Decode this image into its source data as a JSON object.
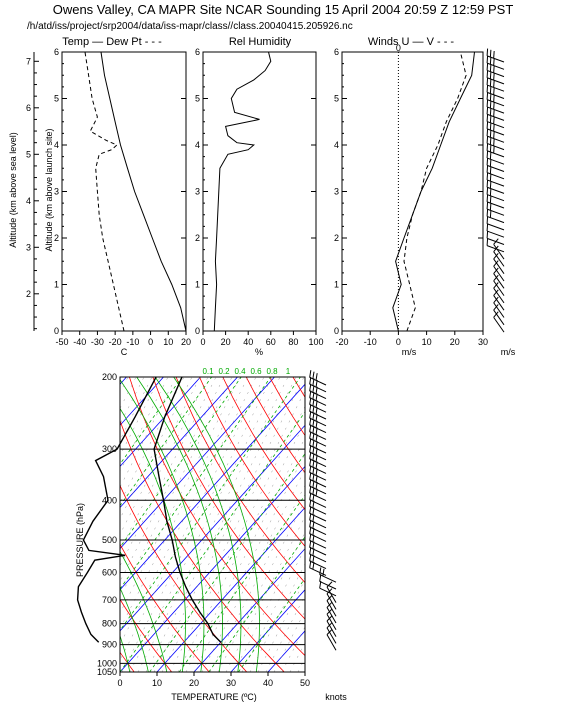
{
  "header": {
    "title": "Owens Valley, CA MAPR Site NCAR Sounding 15 April 2004 20:59 Z 12:59 PST",
    "subtitle": "/h/atd/iss/project/srp2004/data/iss-mapr/class//class.20040415.205926.nc"
  },
  "upper_labels": {
    "msl_axis": "Altitude (km above sea level)",
    "agl_axis": "Altitude (km above launch site)",
    "temp_title": "Temp — Dew Pt - - -",
    "rh_title": "Rel Humidity",
    "winds_title": "Winds U — V - - -",
    "temp_unit": "C",
    "rh_unit": "%",
    "winds_unit": "m/s",
    "barbs_unit": "m/s"
  },
  "skewt_labels": {
    "ylabel": "PRESSURE (hPa)",
    "xlabel": "TEMPERATURE (ºC)",
    "barbs_unit": "knots"
  },
  "chart_data": [
    {
      "type": "line",
      "name": "temperature-dewpoint-profile",
      "ylim": [
        0,
        6
      ],
      "xlim": [
        -50,
        20
      ],
      "yticks": [
        "0",
        "1",
        "2",
        "3",
        "4",
        "5",
        "6"
      ],
      "xticks": [
        "-50",
        "-40",
        "-30",
        "-20",
        "-10",
        "0",
        "10",
        "20"
      ],
      "msl_ticks": [
        "2",
        "3",
        "4",
        "5",
        "6",
        "7"
      ],
      "msl_range": [
        1.2,
        7.2
      ],
      "series": [
        {
          "name": "Temp",
          "style": "solid",
          "color": "#000000",
          "points": [
            [
              20,
              0
            ],
            [
              17,
              0.5
            ],
            [
              12,
              1
            ],
            [
              6,
              1.5
            ],
            [
              1,
              2
            ],
            [
              -4,
              2.5
            ],
            [
              -9,
              3
            ],
            [
              -13,
              3.5
            ],
            [
              -17,
              4
            ],
            [
              -20,
              4.5
            ],
            [
              -23,
              5
            ],
            [
              -26,
              5.5
            ],
            [
              -28,
              6
            ]
          ]
        },
        {
          "name": "Dew Pt",
          "style": "dashed",
          "color": "#000000",
          "points": [
            [
              -15,
              0
            ],
            [
              -18,
              0.5
            ],
            [
              -21,
              1
            ],
            [
              -24,
              1.5
            ],
            [
              -27,
              2
            ],
            [
              -29,
              2.5
            ],
            [
              -30,
              3
            ],
            [
              -31,
              3.5
            ],
            [
              -29,
              3.8
            ],
            [
              -22,
              3.9
            ],
            [
              -19,
              4
            ],
            [
              -25,
              4.1
            ],
            [
              -34,
              4.3
            ],
            [
              -30,
              4.6
            ],
            [
              -33,
              5
            ],
            [
              -35,
              5.5
            ],
            [
              -37,
              6
            ]
          ]
        }
      ]
    },
    {
      "type": "line",
      "name": "relative-humidity-profile",
      "ylim": [
        0,
        6
      ],
      "xlim": [
        0,
        100
      ],
      "yticks": [
        "0",
        "1",
        "2",
        "3",
        "4",
        "5",
        "6"
      ],
      "xticks": [
        "0",
        "20",
        "40",
        "60",
        "80",
        "100"
      ],
      "series": [
        {
          "name": "Rel Humidity",
          "style": "solid",
          "color": "#000000",
          "points": [
            [
              10,
              0
            ],
            [
              11,
              0.5
            ],
            [
              12,
              1
            ],
            [
              11,
              1.5
            ],
            [
              12,
              2
            ],
            [
              13,
              2.5
            ],
            [
              14,
              3
            ],
            [
              15,
              3.5
            ],
            [
              22,
              3.8
            ],
            [
              40,
              3.9
            ],
            [
              45,
              4
            ],
            [
              30,
              4.05
            ],
            [
              22,
              4.2
            ],
            [
              20,
              4.4
            ],
            [
              40,
              4.5
            ],
            [
              50,
              4.55
            ],
            [
              28,
              4.7
            ],
            [
              25,
              5
            ],
            [
              30,
              5.2
            ],
            [
              45,
              5.4
            ],
            [
              55,
              5.6
            ],
            [
              60,
              5.8
            ],
            [
              58,
              6
            ]
          ]
        }
      ]
    },
    {
      "type": "line",
      "name": "winds-profile",
      "ylim": [
        0,
        6
      ],
      "xlim": [
        -20,
        30
      ],
      "yticks": [
        "0",
        "1",
        "2",
        "3",
        "4",
        "5",
        "6"
      ],
      "xticks": [
        "-20",
        "-10",
        "0",
        "10",
        "20",
        "30"
      ],
      "zero_label": "0",
      "series": [
        {
          "name": "U",
          "style": "solid",
          "color": "#000000",
          "points": [
            [
              0,
              0
            ],
            [
              -2,
              0.5
            ],
            [
              1,
              1
            ],
            [
              -1,
              1.5
            ],
            [
              2,
              2
            ],
            [
              5,
              2.5
            ],
            [
              8,
              3
            ],
            [
              12,
              3.5
            ],
            [
              15,
              4
            ],
            [
              18,
              4.5
            ],
            [
              22,
              5
            ],
            [
              26,
              5.5
            ],
            [
              27,
              6
            ]
          ]
        },
        {
          "name": "V",
          "style": "dashed",
          "color": "#000000",
          "points": [
            [
              3,
              0
            ],
            [
              6,
              0.5
            ],
            [
              4,
              1
            ],
            [
              2,
              1.5
            ],
            [
              3,
              2
            ],
            [
              5,
              2.5
            ],
            [
              8,
              3
            ],
            [
              10,
              3.5
            ],
            [
              14,
              4
            ],
            [
              17,
              4.5
            ],
            [
              21,
              5
            ],
            [
              24,
              5.5
            ],
            [
              22,
              6
            ]
          ]
        }
      ]
    },
    {
      "type": "line",
      "name": "skew-t-log-p",
      "xlim": [
        0,
        50
      ],
      "xticks": [
        "0",
        "10",
        "20",
        "30",
        "40",
        "50"
      ],
      "pressure_levels": [
        "200",
        "300",
        "400",
        "500",
        "600",
        "700",
        "800",
        "900",
        "1000",
        "1050"
      ],
      "pressure_values": [
        200,
        300,
        400,
        500,
        600,
        700,
        800,
        900,
        1000,
        1050
      ],
      "mixing_ratio_labels": [
        "0.1",
        "0.2",
        "0.4",
        "0.6",
        "0.8",
        "1"
      ],
      "colors": {
        "isotherm": "#0000ff",
        "dry_adiabat": "#ff0000",
        "moist_adiabat": "#00aa00",
        "mixing_ratio": "#00aa00",
        "isobar": "#000000"
      },
      "series": [
        {
          "name": "Temperature",
          "style": "solid",
          "color": "#000000",
          "points": [
            [
              888,
              20
            ],
            [
              850,
              16
            ],
            [
              800,
              12
            ],
            [
              750,
              7
            ],
            [
              700,
              2
            ],
            [
              650,
              -3
            ],
            [
              600,
              -8
            ],
            [
              550,
              -13
            ],
            [
              500,
              -18
            ],
            [
              450,
              -24
            ],
            [
              400,
              -30
            ],
            [
              350,
              -37
            ],
            [
              300,
              -45
            ],
            [
              250,
              -50
            ],
            [
              200,
              -55
            ]
          ]
        },
        {
          "name": "Dew Point",
          "style": "solid",
          "color": "#000000",
          "points": [
            [
              888,
              -13
            ],
            [
              850,
              -17
            ],
            [
              800,
              -21
            ],
            [
              750,
              -25
            ],
            [
              700,
              -29
            ],
            [
              650,
              -32
            ],
            [
              600,
              -33
            ],
            [
              560,
              -34
            ],
            [
              545,
              -27
            ],
            [
              530,
              -38
            ],
            [
              500,
              -42
            ],
            [
              450,
              -44
            ],
            [
              400,
              -45
            ],
            [
              350,
              -52
            ],
            [
              320,
              -58
            ],
            [
              300,
              -55
            ],
            [
              250,
              -58
            ],
            [
              200,
              -62
            ]
          ]
        }
      ]
    }
  ]
}
